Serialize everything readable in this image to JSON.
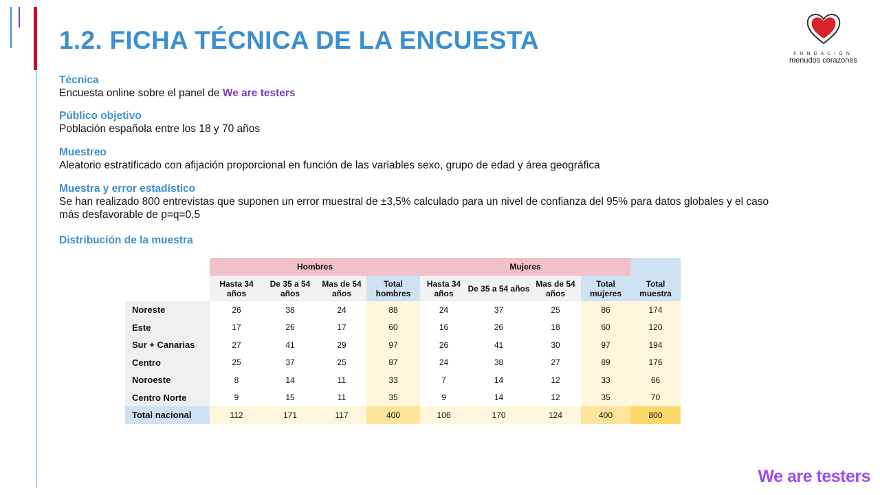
{
  "title": "1.2. FICHA TÉCNICA DE LA ENCUESTA",
  "logo": {
    "line1": "FUNDACIÓN",
    "line2": "menudos corazones"
  },
  "sections": {
    "tecnica": {
      "title": "Técnica",
      "text": "Encuesta online sobre el panel de ",
      "highlight": "We are testers"
    },
    "publico": {
      "title": "Público objetivo",
      "text": "Población española entre los 18 y 70 años"
    },
    "muestreo": {
      "title": "Muestreo",
      "text": "Aleatorio estratificado con afijación proporcional en función de las variables sexo, grupo de edad y área geográfica"
    },
    "muestra": {
      "title": "Muestra y error estadístico",
      "text": "Se han realizado 800 entrevistas que suponen un error muestral de ±3,5% calculado para un nivel de confianza del 95% para datos globales y el caso más desfavorable de p=q=0,5"
    },
    "distribucion": {
      "title": "Distribución de la muestra"
    }
  },
  "table": {
    "groups": [
      "Hombres",
      "Mujeres"
    ],
    "columns": [
      "Hasta 34 años",
      "De 35 a 54 años",
      "Mas de 54 años",
      "Total hombres",
      "Hasta 34 años",
      "De 35 a 54 años",
      "Mas de 54 años",
      "Total mujeres",
      "Total muestra"
    ],
    "rows": [
      {
        "label": "Noreste",
        "values": [
          26,
          38,
          24,
          88,
          24,
          37,
          25,
          86,
          174
        ]
      },
      {
        "label": "Este",
        "values": [
          17,
          26,
          17,
          60,
          16,
          26,
          18,
          60,
          120
        ]
      },
      {
        "label": "Sur + Canarias",
        "values": [
          27,
          41,
          29,
          97,
          26,
          41,
          30,
          97,
          194
        ]
      },
      {
        "label": "Centro",
        "values": [
          25,
          37,
          25,
          87,
          24,
          38,
          27,
          89,
          176
        ]
      },
      {
        "label": "Noroeste",
        "values": [
          8,
          14,
          11,
          33,
          7,
          14,
          12,
          33,
          66
        ]
      },
      {
        "label": "Centro Norte",
        "values": [
          9,
          15,
          11,
          35,
          9,
          14,
          12,
          35,
          70
        ]
      },
      {
        "label": "Total nacional",
        "values": [
          112,
          171,
          117,
          400,
          106,
          170,
          124,
          400,
          800
        ]
      }
    ]
  },
  "brand": "We are testers"
}
